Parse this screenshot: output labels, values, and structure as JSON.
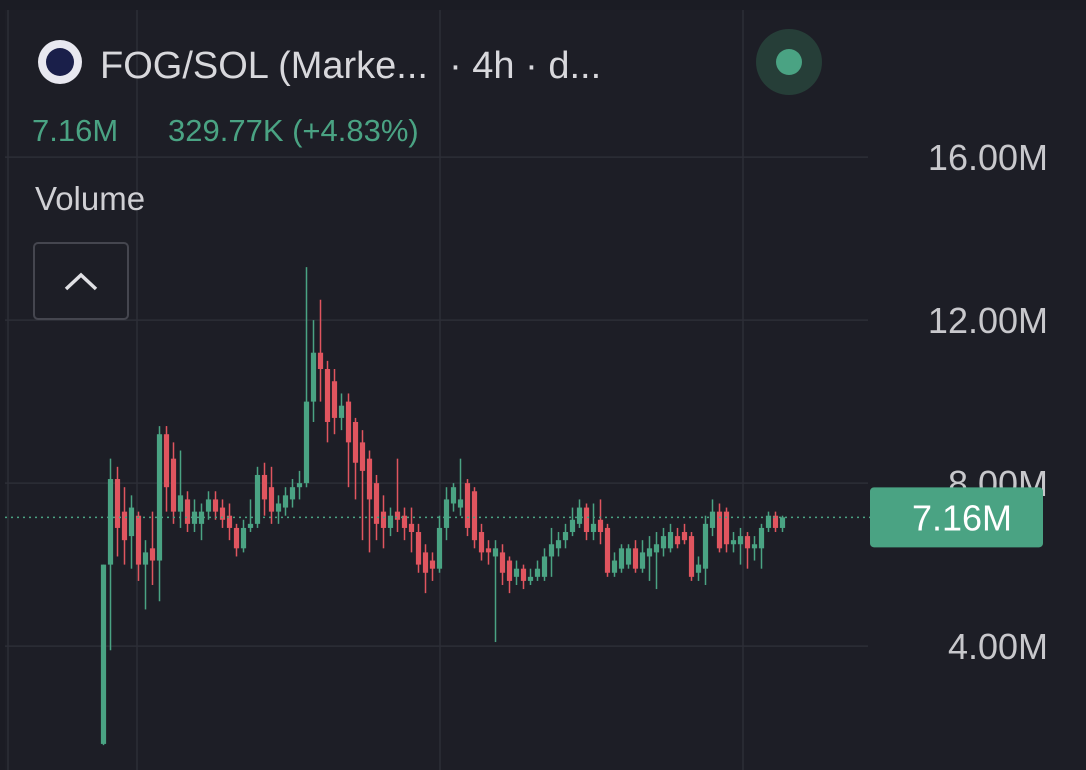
{
  "chart_data": {
    "type": "candlestick",
    "title": "FOG/SOL (Marke...  · 4h · d...",
    "change": "329.77K (+4.83%)",
    "indicator": "Volume",
    "up_color": "#4aa383",
    "down_color": "#e0555f",
    "last_price": {
      "value": 7.16,
      "label": "7.16M"
    },
    "ylim": [
      0.96,
      19.61
    ],
    "yticks": [
      {
        "value": 4,
        "label": "4.00M"
      },
      {
        "value": 8,
        "label": "8.00M"
      },
      {
        "value": 12,
        "label": "12.00M"
      },
      {
        "value": 16,
        "label": "16.00M"
      }
    ],
    "grid": true,
    "open": [
      1.6,
      6.0,
      8.1,
      7.3,
      6.7,
      7.2,
      6.0,
      6.4,
      6.1,
      9.2,
      8.6,
      7.3,
      7.6,
      7.0,
      7.0,
      7.3,
      7.6,
      7.4,
      7.2,
      6.9,
      6.4,
      6.9,
      7.0,
      8.2,
      7.9,
      7.3,
      7.4,
      7.6,
      7.9,
      8.0,
      10.0,
      11.2,
      10.8,
      10.5,
      9.6,
      10.0,
      9.5,
      9.0,
      8.6,
      8.0,
      7.3,
      6.9,
      7.3,
      7.2,
      7.0,
      6.8,
      6.3,
      6.1,
      5.9,
      6.9,
      7.5,
      7.4,
      8.0,
      7.8,
      6.8,
      6.4,
      6.2,
      6.3,
      6.1,
      5.7,
      5.9,
      5.6,
      5.7,
      5.7,
      6.2,
      6.4,
      6.6,
      6.8,
      7.0,
      7.4,
      6.8,
      7.1,
      6.9,
      5.8,
      5.9,
      6.0,
      6.4,
      5.9,
      6.2,
      6.3,
      6.4,
      6.4,
      6.7,
      6.8,
      6.7,
      5.8,
      5.9,
      6.9,
      7.3,
      7.3,
      6.5,
      6.5,
      6.7,
      6.4,
      6.4,
      6.9,
      7.2,
      6.9
    ],
    "high": [
      6.0,
      8.6,
      8.4,
      7.9,
      7.7,
      7.3,
      6.6,
      7.3,
      9.4,
      9.4,
      9.0,
      8.8,
      7.8,
      7.6,
      7.5,
      7.8,
      7.8,
      7.6,
      7.5,
      7.0,
      7.1,
      7.6,
      8.4,
      8.5,
      8.4,
      7.7,
      7.9,
      8.1,
      8.3,
      13.3,
      12.0,
      12.5,
      11.0,
      10.8,
      10.2,
      10.2,
      9.6,
      9.3,
      8.8,
      8.2,
      7.7,
      7.4,
      8.6,
      7.4,
      7.4,
      7.0,
      6.5,
      6.3,
      7.2,
      7.9,
      8.0,
      8.6,
      8.1,
      7.9,
      7.0,
      6.6,
      6.6,
      6.5,
      6.2,
      6.1,
      6.0,
      5.9,
      6.1,
      6.4,
      6.9,
      6.8,
      7.0,
      7.4,
      7.6,
      7.5,
      7.5,
      7.6,
      7.0,
      6.3,
      6.5,
      6.5,
      6.6,
      6.6,
      6.7,
      6.8,
      6.9,
      7.0,
      6.9,
      7.0,
      6.8,
      6.2,
      7.2,
      7.6,
      7.5,
      7.4,
      6.8,
      6.9,
      6.8,
      6.7,
      7.0,
      7.3,
      7.3,
      7.2
    ],
    "low": [
      1.57,
      3.9,
      6.2,
      6.0,
      5.9,
      5.6,
      4.9,
      5.5,
      5.1,
      7.3,
      7.0,
      6.9,
      6.8,
      6.8,
      6.6,
      7.1,
      7.1,
      6.9,
      6.6,
      6.2,
      6.3,
      6.8,
      6.9,
      7.2,
      7.0,
      7.0,
      7.2,
      7.4,
      7.6,
      7.9,
      9.5,
      10.0,
      9.0,
      9.2,
      9.3,
      7.9,
      7.6,
      6.6,
      6.3,
      6.6,
      6.4,
      6.7,
      6.8,
      6.6,
      6.3,
      5.8,
      5.3,
      5.6,
      5.8,
      6.6,
      7.3,
      7.2,
      6.7,
      6.4,
      6.1,
      6.0,
      4.1,
      5.5,
      5.3,
      5.5,
      5.4,
      5.5,
      5.6,
      5.6,
      5.7,
      6.2,
      6.4,
      6.7,
      6.9,
      6.6,
      6.6,
      6.5,
      5.7,
      5.7,
      5.8,
      5.9,
      5.8,
      5.8,
      5.6,
      5.4,
      6.2,
      6.3,
      6.4,
      6.5,
      5.6,
      5.6,
      5.5,
      6.7,
      6.3,
      6.3,
      6.3,
      6.0,
      5.9,
      6.1,
      5.9,
      6.8,
      6.8,
      6.8
    ],
    "close": [
      6.0,
      8.1,
      6.9,
      6.6,
      7.4,
      6.0,
      6.3,
      6.1,
      9.2,
      7.9,
      7.3,
      7.7,
      7.0,
      7.3,
      7.3,
      7.6,
      7.3,
      7.1,
      6.9,
      6.4,
      6.9,
      7.0,
      8.2,
      7.6,
      7.3,
      7.5,
      7.7,
      7.9,
      8.0,
      10.0,
      11.2,
      10.8,
      9.5,
      9.6,
      9.9,
      9.0,
      8.5,
      8.3,
      7.6,
      7.0,
      6.9,
      7.2,
      7.1,
      6.9,
      6.8,
      6.0,
      5.8,
      5.9,
      6.9,
      7.6,
      7.9,
      7.6,
      6.9,
      6.6,
      6.3,
      6.3,
      6.4,
      5.8,
      5.6,
      5.9,
      5.6,
      5.7,
      5.9,
      6.2,
      6.5,
      6.6,
      6.8,
      7.1,
      7.4,
      6.8,
      7.0,
      6.8,
      5.8,
      6.1,
      6.4,
      6.4,
      5.9,
      6.3,
      6.4,
      6.5,
      6.7,
      6.8,
      6.5,
      6.6,
      5.7,
      6.0,
      7.0,
      7.3,
      6.4,
      6.5,
      6.6,
      6.7,
      6.4,
      6.5,
      6.9,
      7.2,
      6.9,
      7.16
    ]
  }
}
